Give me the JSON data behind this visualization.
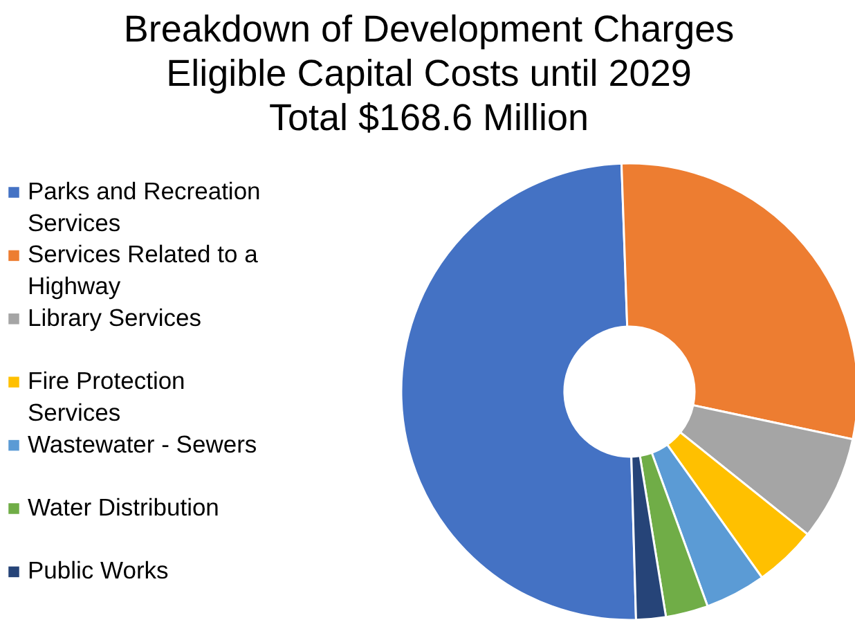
{
  "chart_data": {
    "type": "donut",
    "title": "Breakdown of Development Charges\nEligible Capital Costs until 2029",
    "subtitle": "Total $168.6 Million",
    "categories": [
      "Parks and Recreation Services",
      "Services Related to a Highway",
      "Library Services",
      "Fire Protection Services",
      "Wastewater - Sewers",
      "Water Distribution",
      "Public Works"
    ],
    "values": [
      49.9,
      28.9,
      7.4,
      4.4,
      4.3,
      3.0,
      2.1
    ],
    "colors": [
      "#4472c4",
      "#ed7d31",
      "#a5a5a5",
      "#ffc000",
      "#5b9bd5",
      "#70ad47",
      "#264478"
    ],
    "legend": "left"
  }
}
